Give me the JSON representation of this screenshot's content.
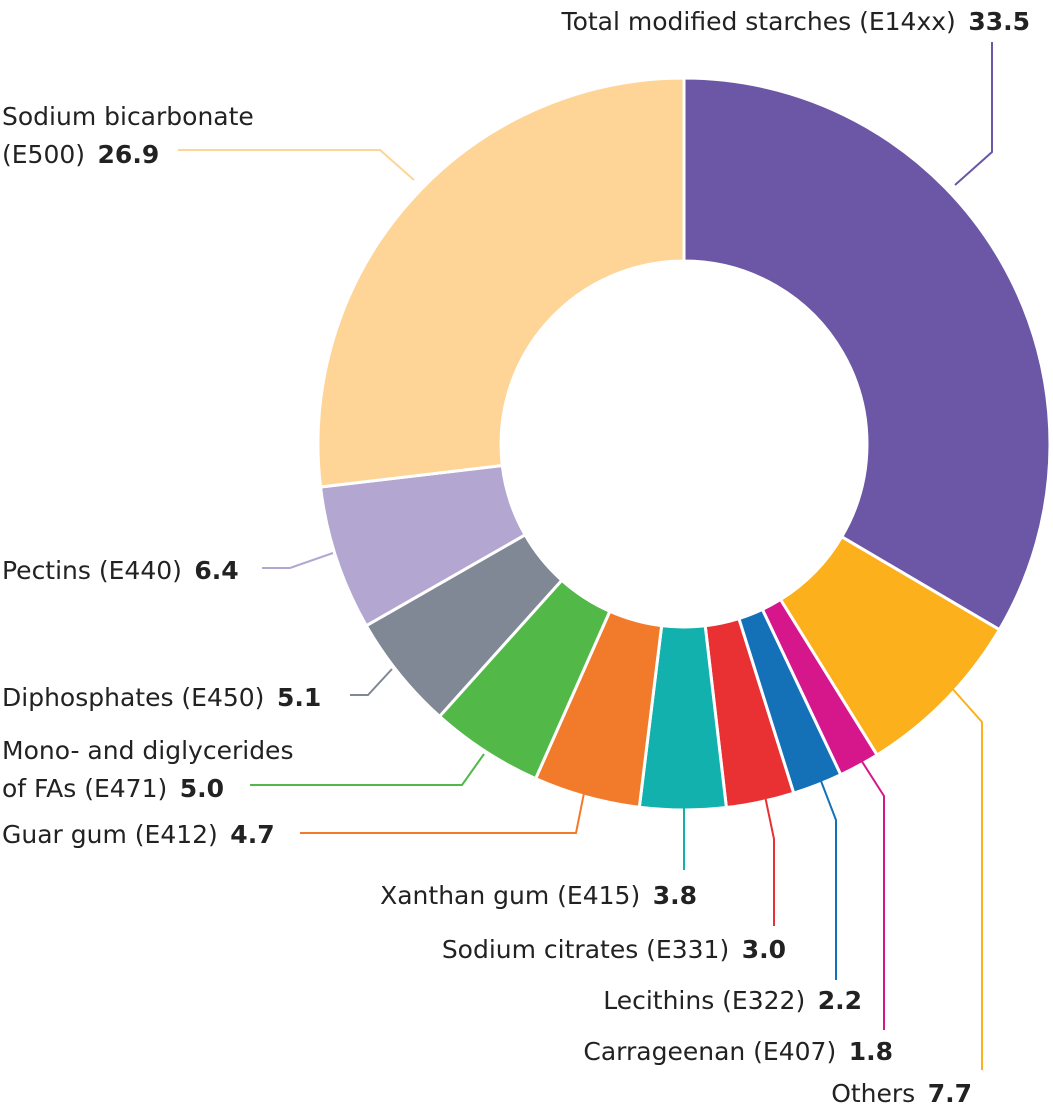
{
  "chart_data": {
    "type": "pie",
    "variant": "donut",
    "title": "",
    "unit": "%",
    "slices": [
      {
        "label": "Total modified starches (E14xx)",
        "value": 33.5,
        "value_text": "33.5",
        "color": "#6b57a5"
      },
      {
        "label": "Others",
        "value": 7.7,
        "value_text": "7.7",
        "color": "#fbb01c"
      },
      {
        "label": "Carrageenan (E407)",
        "value": 1.8,
        "value_text": "1.8",
        "color": "#d6168b"
      },
      {
        "label": "Lecithins (E322)",
        "value": 2.2,
        "value_text": "2.2",
        "color": "#1471b8"
      },
      {
        "label": "Sodium citrates (E331)",
        "value": 3.0,
        "value_text": "3.0",
        "color": "#e93033"
      },
      {
        "label": "Xanthan gum (E415)",
        "value": 3.8,
        "value_text": "3.8",
        "color": "#13b1ad"
      },
      {
        "label": "Guar gum (E412)",
        "value": 4.7,
        "value_text": "4.7",
        "color": "#f27b2b"
      },
      {
        "label": "Mono- and diglycerides of FAs (E471)",
        "value": 5.0,
        "value_text": "5.0",
        "color": "#52b848"
      },
      {
        "label": "Diphosphates (E450)",
        "value": 5.1,
        "value_text": "5.1",
        "color": "#7f8894"
      },
      {
        "label": "Pectins (E440)",
        "value": 6.4,
        "value_text": "6.4",
        "color": "#b3a6d1"
      },
      {
        "label": "Sodium bicarbonate (E500)",
        "value": 26.9,
        "value_text": "26.9",
        "color": "#fed497"
      }
    ]
  }
}
